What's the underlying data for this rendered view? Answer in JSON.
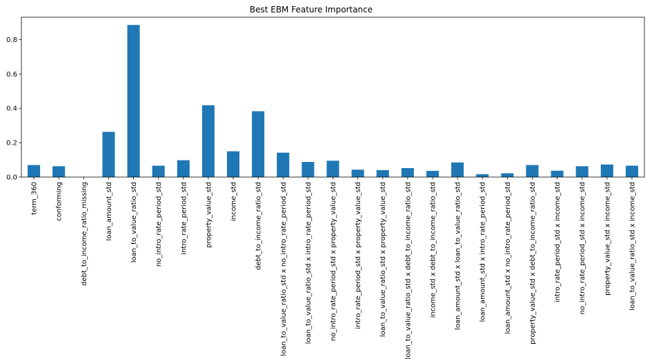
{
  "chart_data": {
    "type": "bar",
    "title": "Best EBM Feature Importance",
    "xlabel": "",
    "ylabel": "",
    "ylim": [
      0,
      0.93
    ],
    "yticks": [
      0.0,
      0.2,
      0.4,
      0.6,
      0.8
    ],
    "ytick_labels": [
      "0.0",
      "0.2",
      "0.4",
      "0.6",
      "0.8"
    ],
    "grid": false,
    "bar_color": "#1f77b4",
    "categories": [
      "term_360",
      "conforming",
      "debt_to_income_ratio_missing",
      "loan_amount_std",
      "loan_to_value_ratio_std",
      "no_intro_rate_period_std",
      "intro_rate_period_std",
      "property_value_std",
      "income_std",
      "debt_to_income_ratio_std",
      "loan_to_value_ratio_std x no_intro_rate_period_std",
      "loan_to_value_ratio_std x intro_rate_period_std",
      "no_intro_rate_period_std x property_value_std",
      "intro_rate_period_std x property_value_std",
      "loan_to_value_ratio_std x property_value_std",
      "loan_to_value_ratio_std x debt_to_income_ratio_std",
      "income_std x debt_to_income_ratio_std",
      "loan_amount_std x loan_to_value_ratio_std",
      "loan_amount_std x intro_rate_period_std",
      "loan_amount_std x no_intro_rate_period_std",
      "property_value_std x debt_to_income_ratio_std",
      "intro_rate_period_std x income_std",
      "no_intro_rate_period_std x income_std",
      "property_value_std x income_std",
      "loan_to_value_ratio_std x income_std"
    ],
    "values": [
      0.07,
      0.063,
      0.0,
      0.263,
      0.885,
      0.066,
      0.098,
      0.418,
      0.15,
      0.383,
      0.142,
      0.088,
      0.095,
      0.043,
      0.04,
      0.052,
      0.036,
      0.085,
      0.017,
      0.022,
      0.07,
      0.037,
      0.063,
      0.073,
      0.066
    ]
  }
}
